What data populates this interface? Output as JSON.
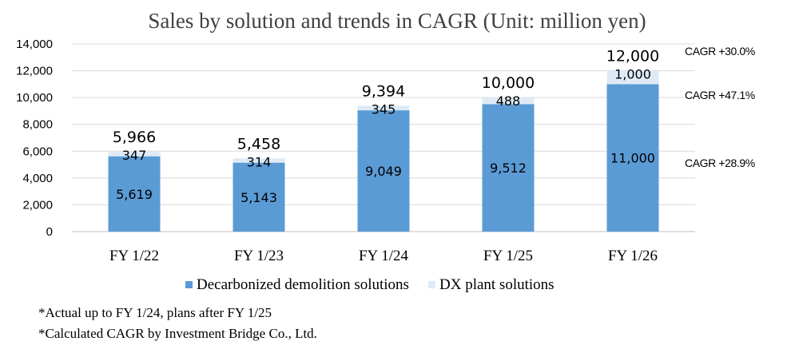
{
  "chart_data": {
    "type": "bar",
    "stacked": true,
    "title": "Sales by solution and trends in CAGR (Unit: million yen)",
    "categories": [
      "FY 1/22",
      "FY 1/23",
      "FY 1/24",
      "FY 1/25",
      "FY 1/26"
    ],
    "series": [
      {
        "name": "Decarbonized demolition solutions",
        "values": [
          5619,
          5143,
          9049,
          9512,
          11000
        ],
        "labels": [
          "5,619",
          "5,143",
          "9,049",
          "9,512",
          "11,000"
        ],
        "color": "#5b9bd5"
      },
      {
        "name": "DX plant solutions",
        "values": [
          347,
          314,
          345,
          488,
          1000
        ],
        "labels": [
          "347",
          "314",
          "345",
          "488",
          "1,000"
        ],
        "color": "#deebf7"
      }
    ],
    "totals": [
      "5,966",
      "5,458",
      "9,394",
      "10,000",
      "12,000"
    ],
    "ylim": [
      0,
      14000
    ],
    "yticks": [
      "0",
      "2,000",
      "4,000",
      "6,000",
      "8,000",
      "10,000",
      "12,000",
      "14,000"
    ],
    "grid": true,
    "legend_position": "bottom",
    "annotations": [
      "CAGR +30.0%",
      "CAGR +47.1%",
      "CAGR +28.9%"
    ],
    "footnotes": [
      "*Actual up to FY 1/24, plans after FY 1/25",
      "*Calculated CAGR by Investment Bridge Co., Ltd."
    ]
  }
}
